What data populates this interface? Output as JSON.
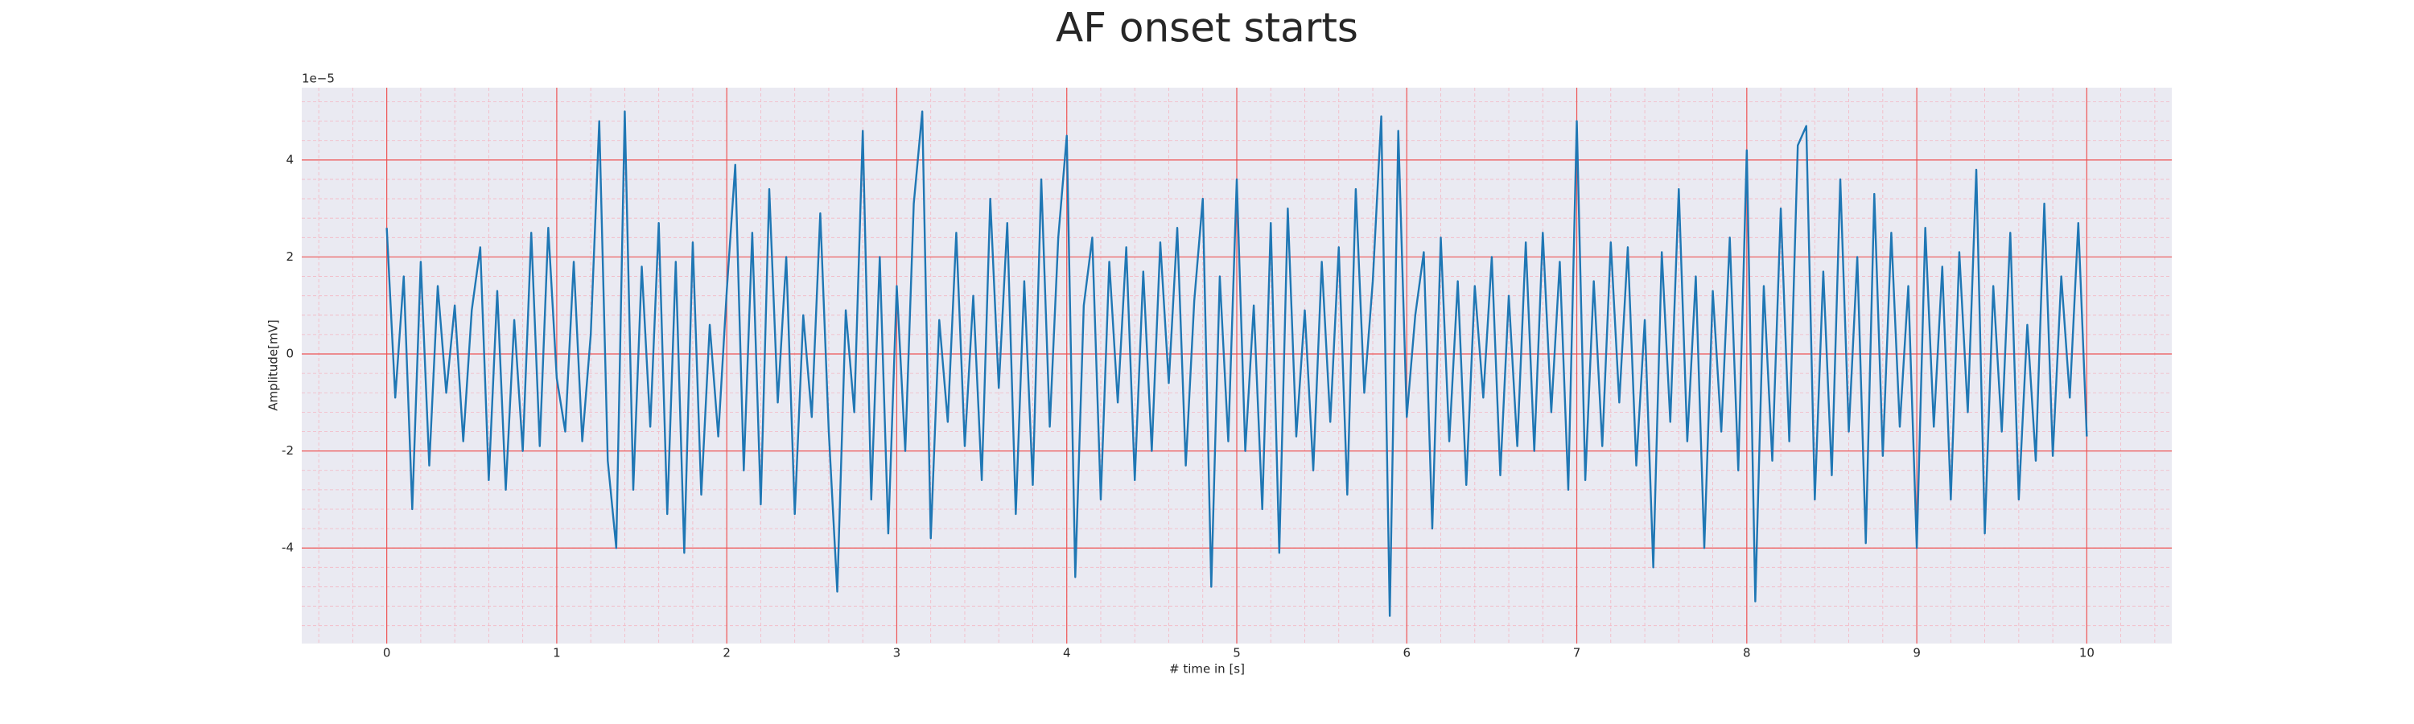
{
  "chart_data": {
    "type": "line",
    "title": "AF onset starts",
    "xlabel": "# time in [s]",
    "ylabel": "Amplitude[mV]",
    "y_offset_label": "1e−5",
    "color": "#1f77b4",
    "grid": true,
    "minor_grid": true,
    "xlim": [
      -0.5,
      10.5
    ],
    "xticks": [
      0,
      1,
      2,
      3,
      4,
      5,
      6,
      7,
      8,
      9,
      10
    ],
    "ylim": [
      -5.97,
      5.49
    ],
    "yticks": [
      -4,
      -2,
      0,
      2,
      4
    ],
    "x": [
      0,
      0.05,
      0.1,
      0.15,
      0.2,
      0.25,
      0.3,
      0.35,
      0.4,
      0.45,
      0.5,
      0.55,
      0.6,
      0.65,
      0.7,
      0.75,
      0.8,
      0.85,
      0.9,
      0.95,
      1,
      1.05,
      1.1,
      1.15,
      1.2,
      1.25,
      1.3,
      1.35,
      1.4,
      1.45,
      1.5,
      1.55,
      1.6,
      1.65,
      1.7,
      1.75,
      1.8,
      1.85,
      1.9,
      1.95,
      2,
      2.05,
      2.1,
      2.15,
      2.2,
      2.25,
      2.3,
      2.35,
      2.4,
      2.45,
      2.5,
      2.55,
      2.6,
      2.65,
      2.7,
      2.75,
      2.8,
      2.85,
      2.9,
      2.95,
      3,
      3.05,
      3.1,
      3.15,
      3.2,
      3.25,
      3.3,
      3.35,
      3.4,
      3.45,
      3.5,
      3.55,
      3.6,
      3.65,
      3.7,
      3.75,
      3.8,
      3.85,
      3.9,
      3.95,
      4,
      4.05,
      4.1,
      4.15,
      4.2,
      4.25,
      4.3,
      4.35,
      4.4,
      4.45,
      4.5,
      4.55,
      4.6,
      4.65,
      4.7,
      4.75,
      4.8,
      4.85,
      4.9,
      4.95,
      5,
      5.05,
      5.1,
      5.15,
      5.2,
      5.25,
      5.3,
      5.35,
      5.4,
      5.45,
      5.5,
      5.55,
      5.6,
      5.65,
      5.7,
      5.75,
      5.8,
      5.85,
      5.9,
      5.95,
      6,
      6.05,
      6.1,
      6.15,
      6.2,
      6.25,
      6.3,
      6.35,
      6.4,
      6.45,
      6.5,
      6.55,
      6.6,
      6.65,
      6.7,
      6.75,
      6.8,
      6.85,
      6.9,
      6.95,
      7,
      7.05,
      7.1,
      7.15,
      7.2,
      7.25,
      7.3,
      7.35,
      7.4,
      7.45,
      7.5,
      7.55,
      7.6,
      7.65,
      7.7,
      7.75,
      7.8,
      7.85,
      7.9,
      7.95,
      8,
      8.05,
      8.1,
      8.15,
      8.2,
      8.25,
      8.3,
      8.35,
      8.4,
      8.45,
      8.5,
      8.55,
      8.6,
      8.65,
      8.7,
      8.75,
      8.8,
      8.85,
      8.9,
      8.95,
      9,
      9.05,
      9.1,
      9.15,
      9.2,
      9.25,
      9.3,
      9.35,
      9.4,
      9.45,
      9.5,
      9.55,
      9.6,
      9.65,
      9.7,
      9.75,
      9.8,
      9.85,
      9.9,
      9.95,
      10
    ],
    "values": [
      2.6,
      -0.9,
      1.6,
      -3.2,
      1.9,
      -2.3,
      1.4,
      -0.8,
      1.0,
      -1.8,
      0.9,
      2.2,
      -2.6,
      1.3,
      -2.8,
      0.7,
      -2.0,
      2.5,
      -1.9,
      2.6,
      -0.5,
      -1.6,
      1.9,
      -1.8,
      0.4,
      4.8,
      -2.2,
      -4.0,
      5.0,
      -2.8,
      1.8,
      -1.5,
      2.7,
      -3.3,
      1.9,
      -4.1,
      2.3,
      -2.9,
      0.6,
      -1.7,
      1.3,
      3.9,
      -2.4,
      2.5,
      -3.1,
      3.4,
      -1.0,
      2.0,
      -3.3,
      0.8,
      -1.3,
      2.9,
      -1.6,
      -4.9,
      0.9,
      -1.2,
      4.6,
      -3.0,
      2.0,
      -3.7,
      1.4,
      -2.0,
      3.1,
      5.0,
      -3.8,
      0.7,
      -1.4,
      2.5,
      -1.9,
      1.2,
      -2.6,
      3.2,
      -0.7,
      2.7,
      -3.3,
      1.5,
      -2.7,
      3.6,
      -1.5,
      2.4,
      4.5,
      -4.6,
      1.0,
      2.4,
      -3.0,
      1.9,
      -1.0,
      2.2,
      -2.6,
      1.7,
      -2.0,
      2.3,
      -0.6,
      2.6,
      -2.3,
      1.1,
      3.2,
      -4.8,
      1.6,
      -1.8,
      3.6,
      -2.0,
      1.0,
      -3.2,
      2.7,
      -4.1,
      3.0,
      -1.7,
      0.9,
      -2.4,
      1.9,
      -1.4,
      2.2,
      -2.9,
      3.4,
      -0.8,
      1.5,
      4.9,
      -5.4,
      4.6,
      -1.3,
      0.8,
      2.1,
      -3.6,
      2.4,
      -1.8,
      1.5,
      -2.7,
      1.4,
      -0.9,
      2.0,
      -2.5,
      1.2,
      -1.9,
      2.3,
      -2.0,
      2.5,
      -1.2,
      1.9,
      -2.8,
      4.8,
      -2.6,
      1.5,
      -1.9,
      2.3,
      -1.0,
      2.2,
      -2.3,
      0.7,
      -4.4,
      2.1,
      -1.4,
      3.4,
      -1.8,
      1.6,
      -4.0,
      1.3,
      -1.6,
      2.4,
      -2.4,
      4.2,
      -5.1,
      1.4,
      -2.2,
      3.0,
      -1.8,
      4.3,
      4.7,
      -3.0,
      1.7,
      -2.5,
      3.6,
      -1.6,
      2.0,
      -3.9,
      3.3,
      -2.1,
      2.5,
      -1.5,
      1.4,
      -4.0,
      2.6,
      -1.5,
      1.8,
      -3.0,
      2.1,
      -1.2,
      3.8,
      -3.7,
      1.4,
      -1.6,
      2.5,
      -3.0,
      0.6,
      -2.2,
      3.1,
      -2.1,
      1.6,
      -0.9,
      2.7,
      -1.7
    ]
  }
}
